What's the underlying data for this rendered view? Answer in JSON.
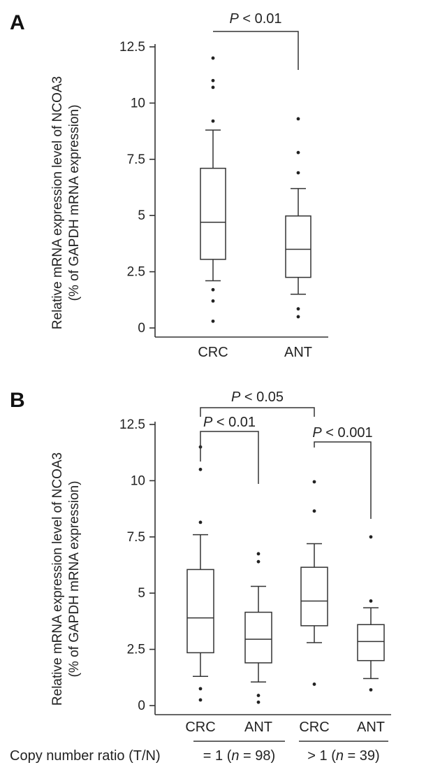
{
  "panels": [
    {
      "letter": "A",
      "ylabel_line1": "Relative mRNA expression level of NCOA3",
      "ylabel_line2": "(% of GAPDH mRNA expression)",
      "pvals": [
        {
          "p": "P",
          "text": " < 0.01",
          "from": 0,
          "to": 1
        }
      ]
    },
    {
      "letter": "B",
      "ylabel_line1": "Relative mRNA expression level of NCOA3",
      "ylabel_line2": "(% of GAPDH mRNA expression)",
      "pvals": [
        {
          "p": "P",
          "text": " < 0.05",
          "from": 0,
          "to": 2
        },
        {
          "p": "P",
          "text": " < 0.01",
          "from": 0,
          "to": 1
        },
        {
          "p": "P",
          "text": " < 0.001",
          "from": 2,
          "to": 3
        }
      ],
      "row_label": "Copy number ratio (T/N)",
      "group_labels": [
        {
          "pre": "= 1 (",
          "n": "n",
          "post": " = 98)"
        },
        {
          "pre": "> 1 (",
          "n": "n",
          "post": " = 39)"
        }
      ]
    }
  ],
  "chart_data": [
    {
      "type": "box",
      "ylim": [
        0,
        12.5
      ],
      "yticks": [
        0,
        2.5,
        5,
        7.5,
        10,
        12.5
      ],
      "ytick_labels": [
        "0",
        "2.5",
        "5",
        "7.5",
        "10",
        "12.5"
      ],
      "ylabel": "Relative mRNA expression level of NCOA3 (% of GAPDH mRNA expression)",
      "categories": [
        "CRC",
        "ANT"
      ],
      "boxes": [
        {
          "label": "CRC",
          "whisker_low": 2.1,
          "q1": 3.05,
          "median": 4.7,
          "q3": 7.1,
          "whisker_high": 8.8,
          "outliers": [
            0.3,
            1.2,
            1.7,
            9.2,
            10.7,
            11.0,
            12.0
          ]
        },
        {
          "label": "ANT",
          "whisker_low": 1.5,
          "q1": 2.25,
          "median": 3.5,
          "q3": 4.98,
          "whisker_high": 6.2,
          "outliers": [
            0.5,
            0.85,
            6.9,
            7.8,
            9.3
          ]
        }
      ],
      "annotations": [
        "P < 0.01"
      ]
    },
    {
      "type": "box",
      "ylim": [
        0,
        12.5
      ],
      "yticks": [
        0,
        2.5,
        5,
        7.5,
        10,
        12.5
      ],
      "ytick_labels": [
        "0",
        "2.5",
        "5",
        "7.5",
        "10",
        "12.5"
      ],
      "ylabel": "Relative mRNA expression level of NCOA3 (% of GAPDH mRNA expression)",
      "categories": [
        "CRC",
        "ANT",
        "CRC",
        "ANT"
      ],
      "boxes": [
        {
          "label": "CRC",
          "whisker_low": 1.3,
          "q1": 2.35,
          "median": 3.9,
          "q3": 6.05,
          "whisker_high": 7.6,
          "outliers": [
            0.25,
            0.75,
            8.15,
            10.5,
            11.5
          ]
        },
        {
          "label": "ANT",
          "whisker_low": 1.05,
          "q1": 1.9,
          "median": 2.95,
          "q3": 4.15,
          "whisker_high": 5.3,
          "outliers": [
            0.15,
            0.45,
            6.4,
            6.75
          ]
        },
        {
          "label": "CRC",
          "whisker_low": 2.8,
          "q1": 3.55,
          "median": 4.65,
          "q3": 6.15,
          "whisker_high": 7.2,
          "outliers": [
            0.95,
            8.65,
            9.95
          ]
        },
        {
          "label": "ANT",
          "whisker_low": 1.2,
          "q1": 2.0,
          "median": 2.85,
          "q3": 3.6,
          "whisker_high": 4.35,
          "outliers": [
            0.7,
            4.65,
            7.5
          ]
        }
      ],
      "groups": [
        "= 1 (n = 98)",
        "> 1 (n = 39)"
      ],
      "annotations": [
        "P < 0.05",
        "P < 0.01",
        "P < 0.001"
      ]
    }
  ]
}
